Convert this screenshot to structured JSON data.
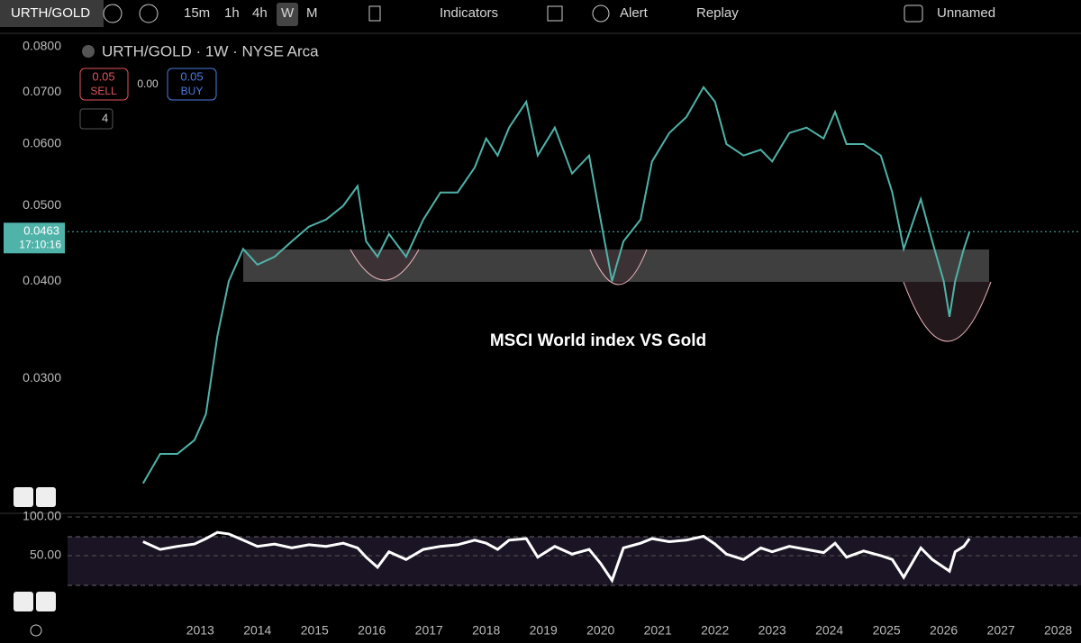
{
  "toolbar": {
    "symbol": "URTH/GOLD",
    "intervals": [
      "15m",
      "1h",
      "4h",
      "W",
      "M"
    ],
    "indicators": "Indicators",
    "alert": "Alert",
    "replay": "Replay",
    "layout_name": "Unnamed"
  },
  "chart_data": [
    {
      "type": "line",
      "title": "URTH/GOLD · 1W · NYSE Arca",
      "annotation": "MSCI World index VS Gold",
      "countdown": "17:10:16",
      "order_panel": {
        "sell_price": "0.05",
        "sell": "SELL",
        "spread": "0.00",
        "buy_price": "0.05",
        "buy": "BUY",
        "indicator_count": "4"
      },
      "log_scale": true,
      "xlim": [
        2010.68,
        2028.4
      ],
      "ylim": [
        0.0204,
        0.0826
      ],
      "yticks": [
        {
          "value": 0.03,
          "label": "0.0300"
        },
        {
          "value": 0.04,
          "label": "0.0400"
        },
        {
          "value": 0.05,
          "label": "0.0500"
        },
        {
          "value": 0.06,
          "label": "0.0600"
        },
        {
          "value": 0.07,
          "label": "0.0700"
        },
        {
          "value": 0.08,
          "label": "0.0800"
        }
      ],
      "x": [
        2012.0,
        2012.3,
        2012.6,
        2012.9,
        2013.1,
        2013.3,
        2013.5,
        2013.75,
        2014.0,
        2014.3,
        2014.6,
        2014.9,
        2015.2,
        2015.5,
        2015.75,
        2015.9,
        2016.1,
        2016.3,
        2016.6,
        2016.9,
        2017.2,
        2017.5,
        2017.8,
        2018.0,
        2018.2,
        2018.4,
        2018.7,
        2018.9,
        2019.2,
        2019.5,
        2019.8,
        2020.0,
        2020.2,
        2020.4,
        2020.7,
        2020.9,
        2021.2,
        2021.5,
        2021.8,
        2022.0,
        2022.2,
        2022.5,
        2022.8,
        2023.0,
        2023.3,
        2023.6,
        2023.9,
        2024.1,
        2024.3,
        2024.6,
        2024.9,
        2025.1,
        2025.3,
        2025.6,
        2025.8,
        2026.0,
        2026.1,
        2026.2,
        2026.35,
        2026.45
      ],
      "series": [
        {
          "name": "URTH/GOLD",
          "color": "#4fb3a9",
          "values": [
            0.022,
            0.024,
            0.024,
            0.025,
            0.027,
            0.034,
            0.04,
            0.044,
            0.042,
            0.043,
            0.045,
            0.047,
            0.048,
            0.05,
            0.053,
            0.045,
            0.043,
            0.046,
            0.043,
            0.048,
            0.052,
            0.052,
            0.056,
            0.061,
            0.058,
            0.063,
            0.068,
            0.058,
            0.063,
            0.055,
            0.058,
            0.048,
            0.04,
            0.045,
            0.048,
            0.057,
            0.062,
            0.065,
            0.071,
            0.068,
            0.06,
            0.058,
            0.059,
            0.057,
            0.062,
            0.063,
            0.061,
            0.066,
            0.06,
            0.06,
            0.058,
            0.052,
            0.044,
            0.051,
            0.045,
            0.04,
            0.036,
            0.04,
            0.044,
            0.0463
          ]
        }
      ]
    },
    {
      "type": "line",
      "xlim": [
        2010.68,
        2028.4
      ],
      "ylim": [
        -29,
        104.6
      ],
      "yticks": [
        {
          "value": 50,
          "label": "50.00"
        },
        {
          "value": 100,
          "label": "100.00"
        }
      ],
      "xticks": [
        2013,
        2014,
        2015,
        2016,
        2017,
        2018,
        2019,
        2020,
        2021,
        2022,
        2023,
        2024,
        2025,
        2026,
        2027,
        2028
      ],
      "x": [
        2012.0,
        2012.3,
        2012.6,
        2012.9,
        2013.1,
        2013.3,
        2013.5,
        2013.75,
        2014.0,
        2014.3,
        2014.6,
        2014.9,
        2015.2,
        2015.5,
        2015.75,
        2015.9,
        2016.1,
        2016.3,
        2016.6,
        2016.9,
        2017.2,
        2017.5,
        2017.8,
        2018.0,
        2018.2,
        2018.4,
        2018.7,
        2018.9,
        2019.2,
        2019.5,
        2019.8,
        2020.0,
        2020.2,
        2020.4,
        2020.7,
        2020.9,
        2021.2,
        2021.5,
        2021.8,
        2022.0,
        2022.2,
        2022.5,
        2022.8,
        2023.0,
        2023.3,
        2023.6,
        2023.9,
        2024.1,
        2024.3,
        2024.6,
        2024.9,
        2025.1,
        2025.3,
        2025.6,
        2025.8,
        2026.0,
        2026.1,
        2026.2,
        2026.35,
        2026.45
      ],
      "series": [
        {
          "name": "RSI",
          "color": "#ffffff",
          "values": [
            68,
            58,
            62,
            65,
            72,
            80,
            78,
            70,
            62,
            65,
            60,
            64,
            62,
            66,
            60,
            48,
            35,
            55,
            45,
            58,
            62,
            64,
            70,
            66,
            58,
            70,
            72,
            48,
            62,
            52,
            58,
            40,
            18,
            60,
            66,
            72,
            68,
            70,
            75,
            65,
            52,
            45,
            60,
            55,
            62,
            58,
            54,
            66,
            48,
            56,
            50,
            45,
            22,
            60,
            45,
            35,
            30,
            55,
            62,
            72
          ]
        }
      ]
    }
  ]
}
